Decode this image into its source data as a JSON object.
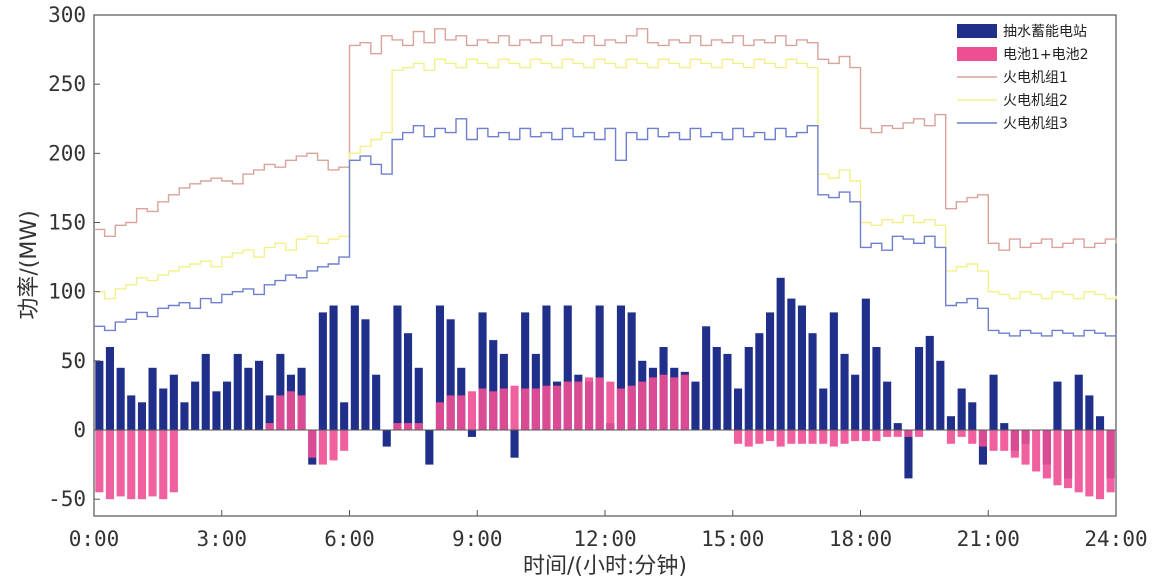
{
  "chart_data": {
    "type": "bar+line",
    "xlabel": "时间/(小时:分钟)",
    "ylabel": "功率/(MW)",
    "ylim": [
      -60,
      300
    ],
    "xlim": [
      0,
      24
    ],
    "yticks": [
      "300",
      "250",
      "200",
      "150",
      "100",
      "50",
      "0",
      "-50"
    ],
    "ytick_values": [
      300,
      250,
      200,
      150,
      100,
      50,
      0,
      -50
    ],
    "xticks": [
      "0:00",
      "3:00",
      "6:00",
      "9:00",
      "12:00",
      "15:00",
      "18:00",
      "21:00",
      "24:00"
    ],
    "xtick_values": [
      0,
      3,
      6,
      9,
      12,
      15,
      18,
      21,
      24
    ],
    "legend": {
      "position": "top-right",
      "entries": [
        {
          "label": "抽水蓄能电站",
          "kind": "bar",
          "color": "#1f2f8a"
        },
        {
          "label": "电池1+电池2",
          "kind": "bar",
          "color": "#ee4f93"
        },
        {
          "label": "火电机组1",
          "kind": "line",
          "color": "#d9a39c"
        },
        {
          "label": "火电机组2",
          "kind": "line",
          "color": "#f2f08a"
        },
        {
          "label": "火电机组3",
          "kind": "line",
          "color": "#6f7fd0"
        }
      ]
    },
    "series": [
      {
        "name": "抽水蓄能电站",
        "type": "bar",
        "color": "#1f2f8a",
        "x": [
          0,
          0.25,
          0.5,
          0.75,
          1,
          1.25,
          1.5,
          1.75,
          2,
          2.25,
          2.5,
          2.75,
          3,
          3.25,
          3.5,
          3.75,
          4,
          4.25,
          4.5,
          4.75,
          5,
          5.25,
          5.5,
          5.75,
          6,
          6.25,
          6.5,
          6.75,
          7,
          7.25,
          7.5,
          7.75,
          8,
          8.25,
          8.5,
          8.75,
          9,
          9.25,
          9.5,
          9.75,
          10,
          10.25,
          10.5,
          10.75,
          11,
          11.25,
          11.5,
          11.75,
          12,
          12.25,
          12.5,
          12.75,
          13,
          13.25,
          13.5,
          13.75,
          14,
          14.25,
          14.5,
          14.75,
          15,
          15.25,
          15.5,
          15.75,
          16,
          16.25,
          16.5,
          16.75,
          17,
          17.25,
          17.5,
          17.75,
          18,
          18.25,
          18.5,
          18.75,
          19,
          19.25,
          19.5,
          19.75,
          20,
          20.25,
          20.5,
          20.75,
          21,
          21.25,
          21.5,
          21.75,
          22,
          22.25,
          22.5,
          22.75,
          23,
          23.25,
          23.5,
          23.75
        ],
        "values": [
          50,
          60,
          45,
          25,
          20,
          45,
          30,
          40,
          20,
          35,
          55,
          28,
          35,
          55,
          45,
          50,
          25,
          55,
          40,
          45,
          -25,
          85,
          90,
          20,
          90,
          80,
          40,
          -12,
          90,
          70,
          45,
          -25,
          90,
          80,
          45,
          -5,
          85,
          65,
          55,
          -20,
          85,
          55,
          90,
          35,
          90,
          40,
          35,
          90,
          5,
          90,
          85,
          50,
          45,
          60,
          45,
          42,
          35,
          75,
          60,
          55,
          30,
          60,
          70,
          85,
          110,
          95,
          90,
          70,
          30,
          85,
          55,
          40,
          95,
          60,
          35,
          5,
          -35,
          60,
          68,
          50,
          10,
          30,
          20,
          -25,
          40,
          5,
          -15,
          -10,
          0,
          -25,
          35,
          -35,
          40,
          25,
          10,
          -35
        ]
      },
      {
        "name": "电池1+电池2",
        "type": "bar",
        "color": "#ee4f93",
        "x": [
          0,
          0.25,
          0.5,
          0.75,
          1,
          1.25,
          1.5,
          1.75,
          2,
          2.25,
          2.5,
          2.75,
          3,
          3.25,
          3.5,
          3.75,
          4,
          4.25,
          4.5,
          4.75,
          5,
          5.25,
          5.5,
          5.75,
          6,
          6.25,
          6.5,
          6.75,
          7,
          7.25,
          7.5,
          7.75,
          8,
          8.25,
          8.5,
          8.75,
          9,
          9.25,
          9.5,
          9.75,
          10,
          10.25,
          10.5,
          10.75,
          11,
          11.25,
          11.5,
          11.75,
          12,
          12.25,
          12.5,
          12.75,
          13,
          13.25,
          13.5,
          13.75,
          14,
          14.25,
          14.5,
          14.75,
          15,
          15.25,
          15.5,
          15.75,
          16,
          16.25,
          16.5,
          16.75,
          17,
          17.25,
          17.5,
          17.75,
          18,
          18.25,
          18.5,
          18.75,
          19,
          19.25,
          19.5,
          19.75,
          20,
          20.25,
          20.5,
          20.75,
          21,
          21.25,
          21.5,
          21.75,
          22,
          22.25,
          22.5,
          22.75,
          23,
          23.25,
          23.5,
          23.75
        ],
        "values": [
          -45,
          -50,
          -48,
          -50,
          -50,
          -48,
          -50,
          -45,
          0,
          0,
          0,
          0,
          0,
          0,
          0,
          0,
          5,
          25,
          28,
          25,
          -20,
          -25,
          -22,
          -15,
          0,
          0,
          0,
          0,
          5,
          5,
          5,
          0,
          20,
          25,
          25,
          28,
          30,
          28,
          30,
          32,
          30,
          30,
          32,
          32,
          35,
          35,
          38,
          38,
          35,
          30,
          32,
          35,
          38,
          40,
          38,
          40,
          0,
          0,
          0,
          0,
          -10,
          -12,
          -10,
          -8,
          -12,
          -10,
          -10,
          -10,
          -10,
          -12,
          -10,
          -8,
          -8,
          -8,
          -5,
          -5,
          -5,
          -5,
          0,
          0,
          -10,
          -5,
          -10,
          -12,
          -15,
          -15,
          -20,
          -25,
          -30,
          -35,
          -40,
          -42,
          -45,
          -48,
          -50,
          -45
        ]
      },
      {
        "name": "火电机组1",
        "type": "line",
        "color": "#d9a39c",
        "x": [
          0,
          0.25,
          0.5,
          0.75,
          1,
          1.25,
          1.5,
          1.75,
          2,
          2.25,
          2.5,
          2.75,
          3,
          3.25,
          3.5,
          3.75,
          4,
          4.25,
          4.5,
          4.75,
          5,
          5.25,
          5.5,
          5.75,
          6,
          6.25,
          6.5,
          6.75,
          7,
          7.25,
          7.5,
          7.75,
          8,
          8.25,
          8.5,
          8.75,
          9,
          9.25,
          9.5,
          9.75,
          10,
          10.25,
          10.5,
          10.75,
          11,
          11.25,
          11.5,
          11.75,
          12,
          12.25,
          12.5,
          12.75,
          13,
          13.25,
          13.5,
          13.75,
          14,
          14.25,
          14.5,
          14.75,
          15,
          15.25,
          15.5,
          15.75,
          16,
          16.25,
          16.5,
          16.75,
          17,
          17.25,
          17.5,
          17.75,
          18,
          18.25,
          18.5,
          18.75,
          19,
          19.25,
          19.5,
          19.75,
          20,
          20.25,
          20.5,
          20.75,
          21,
          21.25,
          21.5,
          21.75,
          22,
          22.25,
          22.5,
          22.75,
          23,
          23.25,
          23.5,
          23.75,
          24
        ],
        "values": [
          145,
          140,
          148,
          150,
          160,
          158,
          165,
          170,
          175,
          178,
          180,
          182,
          180,
          178,
          185,
          188,
          192,
          190,
          195,
          198,
          200,
          195,
          188,
          190,
          278,
          280,
          272,
          285,
          282,
          278,
          288,
          280,
          290,
          282,
          285,
          278,
          282,
          280,
          285,
          278,
          282,
          280,
          285,
          278,
          282,
          280,
          285,
          278,
          282,
          280,
          285,
          290,
          280,
          278,
          282,
          280,
          285,
          278,
          282,
          280,
          285,
          278,
          282,
          280,
          285,
          278,
          282,
          280,
          268,
          265,
          270,
          262,
          218,
          215,
          220,
          218,
          222,
          225,
          220,
          228,
          160,
          165,
          168,
          170,
          135,
          130,
          138,
          132,
          135,
          138,
          132,
          135,
          138,
          132,
          135,
          138,
          135
        ]
      },
      {
        "name": "火电机组2",
        "type": "line",
        "color": "#f2f08a",
        "x": [
          0,
          0.25,
          0.5,
          0.75,
          1,
          1.25,
          1.5,
          1.75,
          2,
          2.25,
          2.5,
          2.75,
          3,
          3.25,
          3.5,
          3.75,
          4,
          4.25,
          4.5,
          4.75,
          5,
          5.25,
          5.5,
          5.75,
          6,
          6.25,
          6.5,
          6.75,
          7,
          7.25,
          7.5,
          7.75,
          8,
          8.25,
          8.5,
          8.75,
          9,
          9.25,
          9.5,
          9.75,
          10,
          10.25,
          10.5,
          10.75,
          11,
          11.25,
          11.5,
          11.75,
          12,
          12.25,
          12.5,
          12.75,
          13,
          13.25,
          13.5,
          13.75,
          14,
          14.25,
          14.5,
          14.75,
          15,
          15.25,
          15.5,
          15.75,
          16,
          16.25,
          16.5,
          16.75,
          17,
          17.25,
          17.5,
          17.75,
          18,
          18.25,
          18.5,
          18.75,
          19,
          19.25,
          19.5,
          19.75,
          20,
          20.25,
          20.5,
          20.75,
          21,
          21.25,
          21.5,
          21.75,
          22,
          22.25,
          22.5,
          22.75,
          23,
          23.25,
          23.5,
          23.75,
          24
        ],
        "values": [
          100,
          95,
          102,
          105,
          110,
          108,
          112,
          115,
          118,
          120,
          122,
          118,
          125,
          128,
          130,
          125,
          132,
          135,
          130,
          138,
          140,
          135,
          138,
          140,
          200,
          205,
          210,
          215,
          260,
          262,
          265,
          260,
          268,
          265,
          262,
          268,
          265,
          262,
          268,
          265,
          262,
          268,
          265,
          262,
          268,
          265,
          262,
          268,
          265,
          262,
          268,
          265,
          262,
          268,
          265,
          262,
          268,
          265,
          262,
          268,
          265,
          262,
          268,
          265,
          262,
          268,
          265,
          262,
          185,
          182,
          188,
          180,
          150,
          148,
          152,
          150,
          155,
          150,
          152,
          148,
          115,
          118,
          120,
          115,
          100,
          98,
          95,
          100,
          98,
          95,
          100,
          98,
          95,
          100,
          98,
          95,
          97
        ]
      },
      {
        "name": "火电机组3",
        "type": "line",
        "color": "#6f7fd0",
        "x": [
          0,
          0.25,
          0.5,
          0.75,
          1,
          1.25,
          1.5,
          1.75,
          2,
          2.25,
          2.5,
          2.75,
          3,
          3.25,
          3.5,
          3.75,
          4,
          4.25,
          4.5,
          4.75,
          5,
          5.25,
          5.5,
          5.75,
          6,
          6.25,
          6.5,
          6.75,
          7,
          7.25,
          7.5,
          7.75,
          8,
          8.25,
          8.5,
          8.75,
          9,
          9.25,
          9.5,
          9.75,
          10,
          10.25,
          10.5,
          10.75,
          11,
          11.25,
          11.5,
          11.75,
          12,
          12.25,
          12.5,
          12.75,
          13,
          13.25,
          13.5,
          13.75,
          14,
          14.25,
          14.5,
          14.75,
          15,
          15.25,
          15.5,
          15.75,
          16,
          16.25,
          16.5,
          16.75,
          17,
          17.25,
          17.5,
          17.75,
          18,
          18.25,
          18.5,
          18.75,
          19,
          19.25,
          19.5,
          19.75,
          20,
          20.25,
          20.5,
          20.75,
          21,
          21.25,
          21.5,
          21.75,
          22,
          22.25,
          22.5,
          22.75,
          23,
          23.25,
          23.5,
          23.75,
          24
        ],
        "values": [
          75,
          72,
          78,
          80,
          85,
          82,
          88,
          90,
          92,
          88,
          95,
          92,
          98,
          100,
          102,
          98,
          105,
          108,
          112,
          110,
          115,
          118,
          120,
          125,
          195,
          198,
          192,
          185,
          210,
          215,
          220,
          212,
          218,
          215,
          225,
          210,
          218,
          212,
          215,
          210,
          218,
          212,
          215,
          210,
          218,
          212,
          215,
          210,
          218,
          195,
          215,
          210,
          218,
          212,
          215,
          210,
          218,
          212,
          215,
          210,
          218,
          212,
          215,
          210,
          218,
          212,
          215,
          220,
          170,
          168,
          172,
          165,
          132,
          135,
          130,
          140,
          138,
          135,
          140,
          132,
          90,
          92,
          95,
          88,
          72,
          70,
          68,
          72,
          70,
          68,
          72,
          70,
          68,
          72,
          70,
          68,
          70
        ]
      }
    ]
  }
}
